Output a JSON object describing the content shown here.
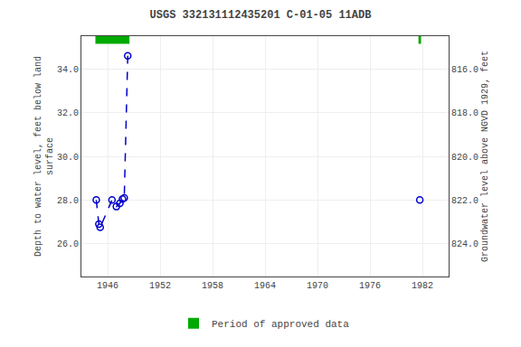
{
  "chart_data": {
    "type": "line",
    "title": "USGS 332131112435201 C-01-05 11ADB",
    "y_label": "Depth to water level, feet below land\nsurface",
    "y2_label": "Groundwater level above NGVD 1929, feet",
    "xlim": [
      1943.0,
      1985.0
    ],
    "xticks": [
      1946,
      1952,
      1958,
      1964,
      1970,
      1976,
      1982
    ],
    "ylim": [
      24.5,
      35.5
    ],
    "yticks": [
      {
        "value": 26.0,
        "label": "26.0"
      },
      {
        "value": 28.0,
        "label": "28.0"
      },
      {
        "value": 30.0,
        "label": "30.0"
      },
      {
        "value": 32.0,
        "label": "32.0"
      },
      {
        "value": 34.0,
        "label": "34.0"
      }
    ],
    "y2lim": [
      825.5,
      814.5
    ],
    "y2ticks": [
      {
        "value": 824.0,
        "label": "824.0"
      },
      {
        "value": 822.0,
        "label": "822.0"
      },
      {
        "value": 820.0,
        "label": "820.0"
      },
      {
        "value": 818.0,
        "label": "818.0"
      },
      {
        "value": 816.0,
        "label": "816.0"
      }
    ],
    "grid": true,
    "legend": "bottom",
    "series": [
      {
        "x": [
          1944.7,
          1945.0,
          1945.15,
          1946.5,
          1947.0,
          1947.4,
          1947.7,
          1947.9,
          1948.3
        ],
        "values": [
          28.0,
          26.9,
          26.75,
          28.0,
          27.7,
          27.85,
          28.05,
          28.1,
          34.6
        ],
        "color": "#0000cc",
        "line_style": "dashed",
        "marker": "open circle"
      },
      {
        "x": [
          1981.7
        ],
        "values": [
          28.0
        ],
        "color": "#0000cc",
        "line_style": "none",
        "marker": "open circle"
      }
    ],
    "approved": {
      "name": "Period of approved data",
      "color": "#00aa00",
      "periods": [
        [
          1944.6,
          1948.5
        ],
        [
          1981.55,
          1981.85
        ]
      ]
    }
  }
}
